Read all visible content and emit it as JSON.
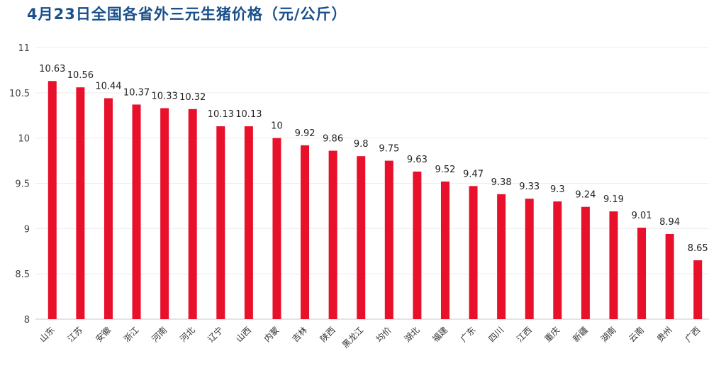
{
  "chart_data": {
    "type": "bar",
    "title": "4月23日全国各省外三元生猪价格（元/公斤）",
    "categories": [
      "山东",
      "江苏",
      "安徽",
      "浙江",
      "河南",
      "河北",
      "辽宁",
      "山西",
      "内蒙",
      "吉林",
      "陕西",
      "黑龙江",
      "均价",
      "湖北",
      "福建",
      "广东",
      "四川",
      "江西",
      "重庆",
      "新疆",
      "湖南",
      "云南",
      "贵州",
      "广西"
    ],
    "values": [
      10.63,
      10.56,
      10.44,
      10.37,
      10.33,
      10.32,
      10.13,
      10.13,
      10,
      9.92,
      9.86,
      9.8,
      9.75,
      9.63,
      9.52,
      9.47,
      9.38,
      9.33,
      9.3,
      9.24,
      9.19,
      9.01,
      8.94,
      8.65
    ],
    "value_labels": [
      "10.63",
      "10.56",
      "10.44",
      "10.37",
      "10.33",
      "10.32",
      "10.13",
      "10.13",
      "10",
      "9.92",
      "9.86",
      "9.8",
      "9.75",
      "9.63",
      "9.52",
      "9.47",
      "9.38",
      "9.33",
      "9.3",
      "9.24",
      "9.19",
      "9.01",
      "8.94",
      "8.65"
    ],
    "ylim": [
      8,
      11
    ],
    "yticks": [
      "8",
      "8.5",
      "9",
      "9.5",
      "10",
      "10.5",
      "11"
    ],
    "grid": true,
    "bar_color": "#e8102a",
    "title_color": "#1a4f8b"
  }
}
